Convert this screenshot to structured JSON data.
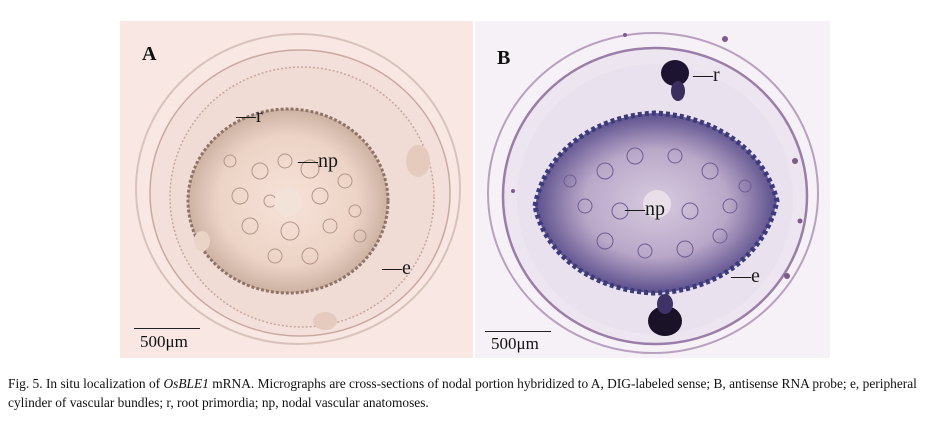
{
  "figure": {
    "panels": [
      {
        "id": "A",
        "label": "A",
        "annotations": [
          "r",
          "np",
          "e"
        ],
        "scale_bar": "500μm"
      },
      {
        "id": "B",
        "label": "B",
        "annotations": [
          "r",
          "np",
          "e"
        ],
        "scale_bar": "500μm"
      }
    ],
    "caption": {
      "prefix": "Fig. 5.  In situ localization of ",
      "gene": "OsBLE1",
      "rest": " mRNA. Micrographs are cross-sections of nodal portion hybridized to A, DIG-labeled sense; B, antisense RNA probe; e, peripheral cylinder of vascular bundles; r, root primordia; np, nodal vascular anatomoses."
    }
  }
}
